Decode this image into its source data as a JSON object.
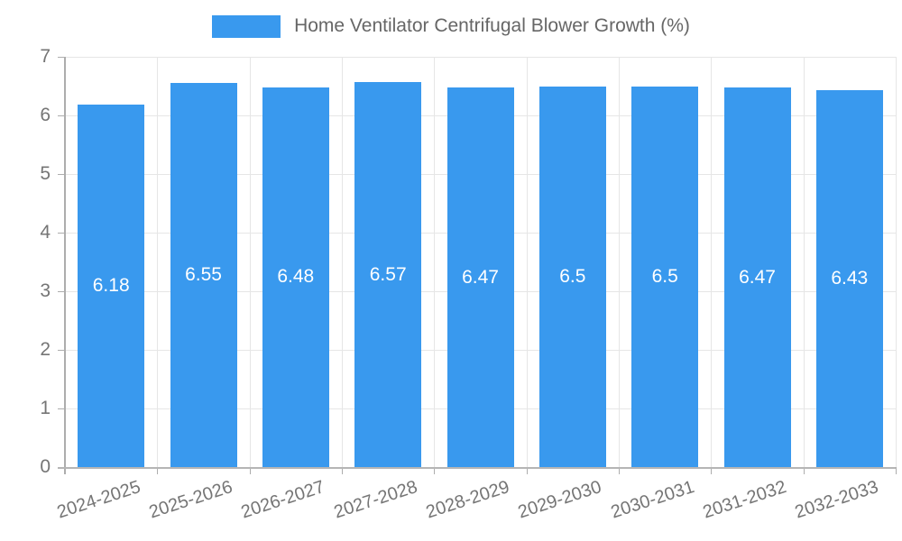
{
  "chart_data": {
    "type": "bar",
    "title": "Home Ventilator Centrifugal Blower Growth (%)",
    "legend_position": "top",
    "categories": [
      "2024-2025",
      "2025-2026",
      "2026-2027",
      "2027-2028",
      "2028-2029",
      "2029-2030",
      "2030-2031",
      "2031-2032",
      "2032-2033"
    ],
    "series": [
      {
        "name": "Home Ventilator Centrifugal Blower Growth (%)",
        "values": [
          6.18,
          6.55,
          6.48,
          6.57,
          6.47,
          6.5,
          6.5,
          6.47,
          6.43
        ],
        "value_labels": [
          "6.18",
          "6.55",
          "6.48",
          "6.57",
          "6.47",
          "6.5",
          "6.5",
          "6.47",
          "6.43"
        ]
      }
    ],
    "xlabel": "",
    "ylabel": "",
    "ylim": [
      0,
      7
    ],
    "yticks": [
      0,
      1,
      2,
      3,
      4,
      5,
      6,
      7
    ],
    "grid": true,
    "colors": {
      "bar": "#3999EE",
      "bar_label": "#FFFFFF",
      "grid": "#E6E6E6",
      "axis": "#ADADAD",
      "tick_text": "#757575",
      "legend_text": "#666666",
      "background": "#FFFFFF"
    }
  }
}
